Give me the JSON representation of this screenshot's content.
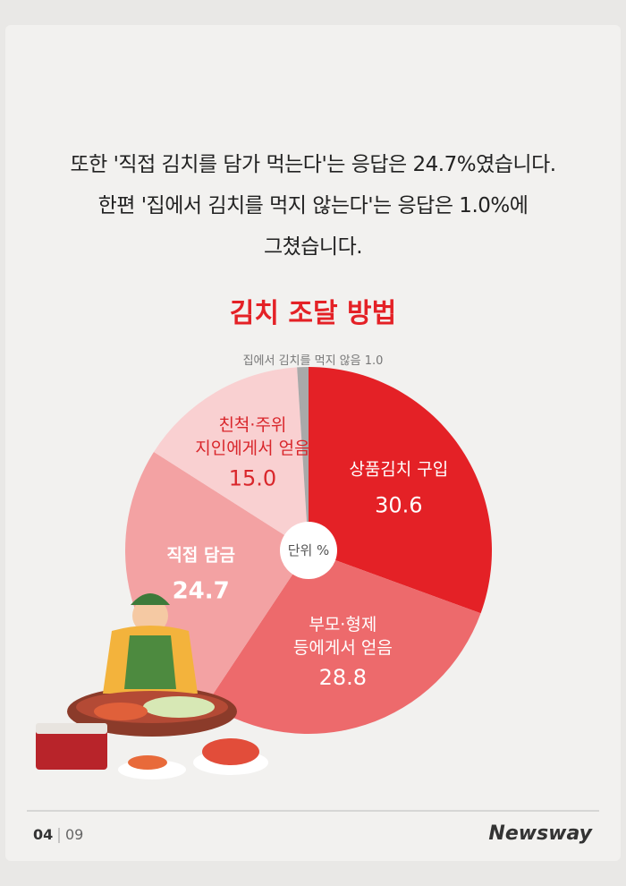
{
  "intro": [
    "또한 '직접 김치를 담가 먹는다'는 응답은 24.7%였습니다.",
    "한편 '집에서 김치를 먹지 않는다'는 응답은 1.0%에",
    "그쳤습니다."
  ],
  "chart_data": {
    "type": "pie",
    "title": "김치 조달 방법",
    "unit": "단위 %",
    "categories": [
      "상품김치 구입",
      "부모·형제\n등에게서 얻음",
      "직접 담금",
      "친척·주위\n지인에게서 얻음",
      "집에서 김치를 먹지 않음"
    ],
    "values": [
      30.6,
      28.8,
      24.7,
      15.0,
      1.0
    ],
    "value_labels": [
      "30.6",
      "28.8",
      "24.7",
      "15.0",
      "1.0"
    ],
    "colors": [
      "#e42126",
      "#ed6a6c",
      "#f3a2a3",
      "#f9d0d1",
      "#a9a9a9"
    ]
  },
  "footer": {
    "page": "04",
    "total": "09",
    "brand": "Newsway"
  }
}
